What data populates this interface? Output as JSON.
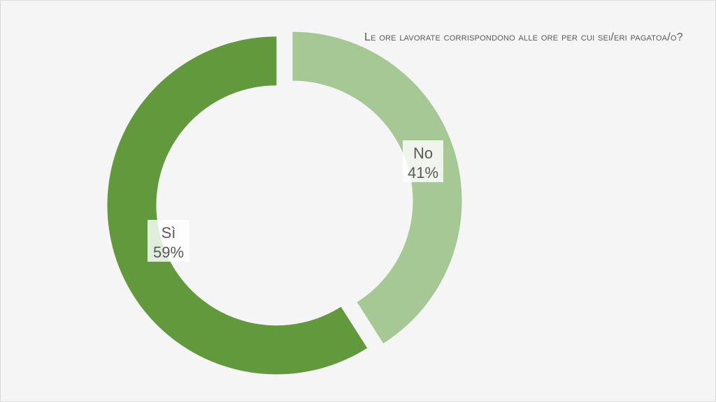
{
  "chart_data": {
    "type": "pie",
    "subtype": "donut",
    "title": "Le ore lavorate corrispondono alle ore per cui sei/eri pagatoa/o?",
    "slices": [
      {
        "label": "No",
        "value": 41,
        "percent_label": "41%",
        "color": "#a5c895"
      },
      {
        "label": "Sì",
        "value": 59,
        "percent_label": "59%",
        "color": "#63993d"
      }
    ],
    "exploded": true,
    "legend": "none"
  }
}
